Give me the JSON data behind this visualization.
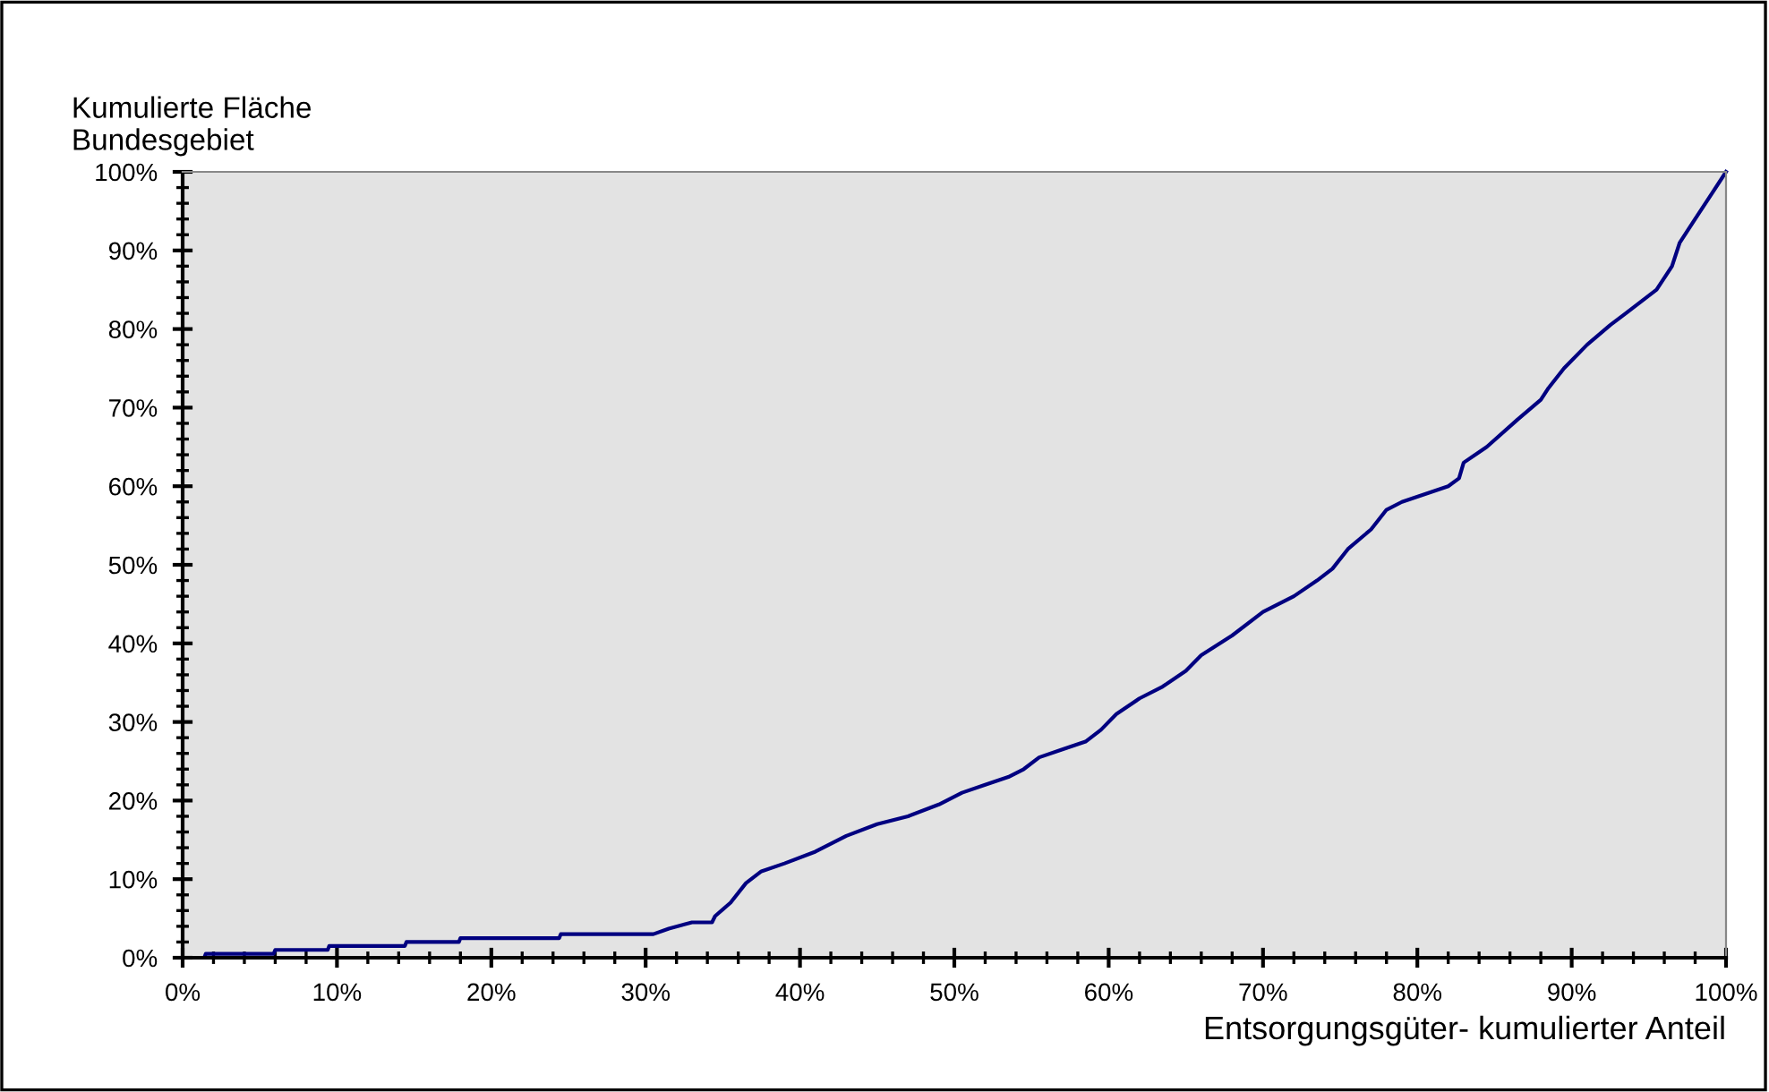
{
  "chart_data": {
    "type": "line",
    "ylabel": "Kumulierte Fläche\nBundesgebiet",
    "xlabel": "Entsorgungsgüter- kumulierter Anteil",
    "x": [
      0,
      1.4,
      1.5,
      5.9,
      6,
      9.4,
      9.5,
      14.4,
      14.5,
      17.9,
      18,
      24.4,
      24.5,
      30.5,
      31.5,
      33,
      34.3,
      34.5,
      35.5,
      36.5,
      37.5,
      39,
      41,
      43,
      45,
      47,
      49,
      50.5,
      52,
      53.5,
      54.5,
      55.5,
      57,
      58.5,
      59.5,
      60.5,
      62,
      63.5,
      65,
      66,
      68,
      70,
      72,
      73.5,
      74.5,
      75.5,
      77,
      78,
      79,
      80.5,
      82,
      82.7,
      83,
      84.5,
      86.5,
      88,
      88.5,
      89.5,
      91,
      92.5,
      93.5,
      94.5,
      95.5,
      96.5,
      97,
      98,
      99,
      100
    ],
    "series": [
      {
        "color": "#000080",
        "values": [
          0,
          0,
          0.5,
          0.5,
          1,
          1,
          1.5,
          1.5,
          2,
          2,
          2.5,
          2.5,
          3,
          3,
          3.7,
          4.5,
          4.5,
          5.3,
          7,
          9.5,
          11,
          12,
          13.5,
          15.5,
          17,
          18,
          19.5,
          21,
          22,
          23,
          24,
          25.5,
          26.5,
          27.5,
          29,
          31,
          33,
          34.5,
          36.5,
          38.5,
          41,
          44,
          46,
          48,
          49.5,
          52,
          54.5,
          57,
          58,
          59,
          60,
          61,
          63,
          65,
          68.5,
          71,
          72.5,
          75,
          78,
          80.5,
          82,
          83.5,
          85,
          88,
          91,
          94,
          97,
          100
        ]
      }
    ],
    "xlim": [
      0,
      100
    ],
    "ylim": [
      0,
      100
    ],
    "xticks": [
      {
        "value": 0,
        "label": "0%"
      },
      {
        "value": 10,
        "label": "10%"
      },
      {
        "value": 20,
        "label": "20%"
      },
      {
        "value": 30,
        "label": "30%"
      },
      {
        "value": 40,
        "label": "40%"
      },
      {
        "value": 50,
        "label": "50%"
      },
      {
        "value": 60,
        "label": "60%"
      },
      {
        "value": 70,
        "label": "70%"
      },
      {
        "value": 80,
        "label": "80%"
      },
      {
        "value": 90,
        "label": "90%"
      },
      {
        "value": 100,
        "label": "100%"
      }
    ],
    "yticks": [
      {
        "value": 0,
        "label": "0%"
      },
      {
        "value": 10,
        "label": "10%"
      },
      {
        "value": 20,
        "label": "20%"
      },
      {
        "value": 30,
        "label": "30%"
      },
      {
        "value": 40,
        "label": "40%"
      },
      {
        "value": 50,
        "label": "50%"
      },
      {
        "value": 60,
        "label": "60%"
      },
      {
        "value": 70,
        "label": "70%"
      },
      {
        "value": 80,
        "label": "80%"
      },
      {
        "value": 90,
        "label": "90%"
      },
      {
        "value": 100,
        "label": "100%"
      }
    ],
    "grid": false,
    "legend": false,
    "marker": "none",
    "line_style": "solid"
  }
}
